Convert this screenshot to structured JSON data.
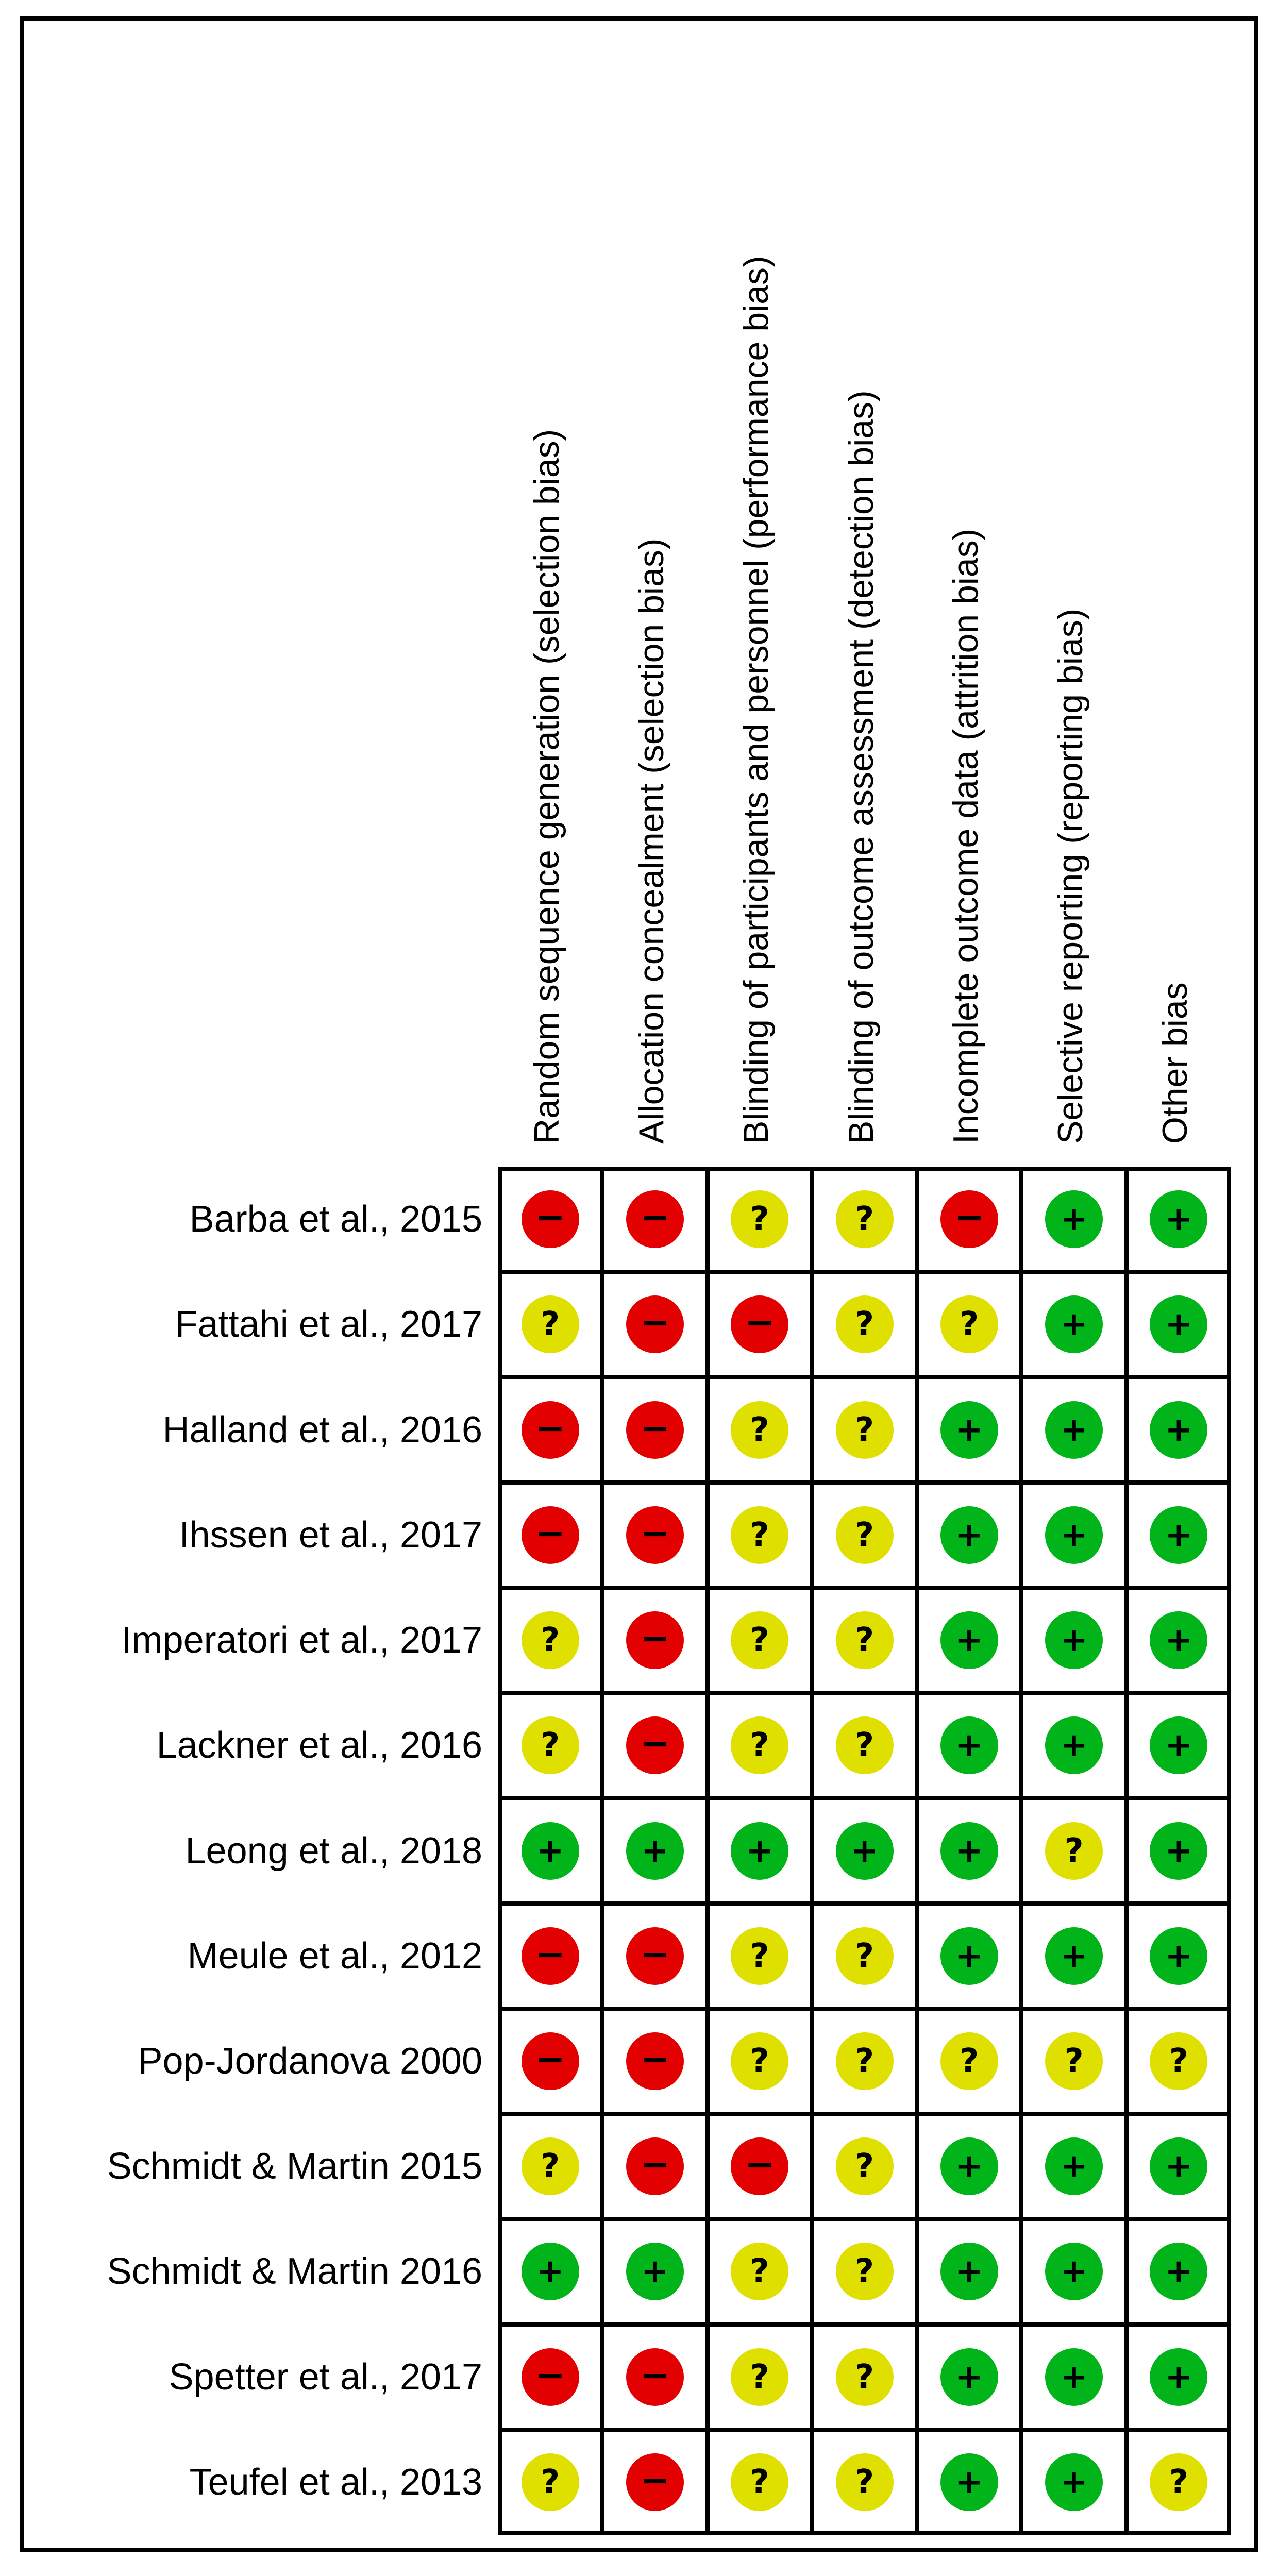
{
  "chart_data": {
    "type": "table",
    "columns": [
      "Random sequence generation (selection bias)",
      "Allocation concealment (selection bias)",
      "Blinding of participants and personnel (performance bias)",
      "Blinding of outcome assessment (detection bias)",
      "Incomplete outcome data (attrition bias)",
      "Selective reporting (reporting bias)",
      "Other bias"
    ],
    "rows": [
      {
        "study": "Barba et al., 2015",
        "ratings": [
          "high",
          "high",
          "unclear",
          "unclear",
          "high",
          "low",
          "low"
        ]
      },
      {
        "study": "Fattahi et al., 2017",
        "ratings": [
          "unclear",
          "high",
          "high",
          "unclear",
          "unclear",
          "low",
          "low"
        ]
      },
      {
        "study": "Halland et al., 2016",
        "ratings": [
          "high",
          "high",
          "unclear",
          "unclear",
          "low",
          "low",
          "low"
        ]
      },
      {
        "study": "Ihssen et al., 2017",
        "ratings": [
          "high",
          "high",
          "unclear",
          "unclear",
          "low",
          "low",
          "low"
        ]
      },
      {
        "study": "Imperatori et al., 2017",
        "ratings": [
          "unclear",
          "high",
          "unclear",
          "unclear",
          "low",
          "low",
          "low"
        ]
      },
      {
        "study": "Lackner et al., 2016",
        "ratings": [
          "unclear",
          "high",
          "unclear",
          "unclear",
          "low",
          "low",
          "low"
        ]
      },
      {
        "study": "Leong et al., 2018",
        "ratings": [
          "low",
          "low",
          "low",
          "low",
          "low",
          "unclear",
          "low"
        ]
      },
      {
        "study": "Meule et al., 2012",
        "ratings": [
          "high",
          "high",
          "unclear",
          "unclear",
          "low",
          "low",
          "low"
        ]
      },
      {
        "study": "Pop-Jordanova 2000",
        "ratings": [
          "high",
          "high",
          "unclear",
          "unclear",
          "unclear",
          "unclear",
          "unclear"
        ]
      },
      {
        "study": "Schmidt & Martin 2015",
        "ratings": [
          "unclear",
          "high",
          "high",
          "unclear",
          "low",
          "low",
          "low"
        ]
      },
      {
        "study": "Schmidt & Martin 2016",
        "ratings": [
          "low",
          "low",
          "unclear",
          "unclear",
          "low",
          "low",
          "low"
        ]
      },
      {
        "study": "Spetter et al., 2017",
        "ratings": [
          "high",
          "high",
          "unclear",
          "unclear",
          "low",
          "low",
          "low"
        ]
      },
      {
        "study": "Teufel et al., 2013",
        "ratings": [
          "unclear",
          "high",
          "unclear",
          "unclear",
          "low",
          "low",
          "unclear"
        ]
      }
    ],
    "symbols": {
      "low": "+",
      "unclear": "?",
      "high": "−"
    },
    "colors": {
      "low": "#00b41a",
      "unclear": "#e0e000",
      "high": "#e30000"
    }
  }
}
